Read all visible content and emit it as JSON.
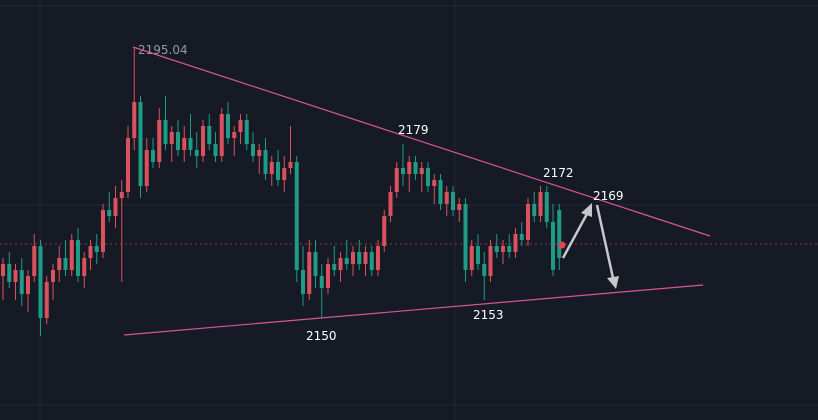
{
  "chart_data": {
    "type": "candlestick",
    "ylim": [
      2133,
      2203
    ],
    "up_color": "#d9525e",
    "down_color": "#1f9b86",
    "annotations": [
      "2195.04",
      "2179",
      "2172",
      "2169",
      "2150",
      "2153"
    ],
    "ohlc": [
      [
        2157,
        2160,
        2153,
        2159
      ],
      [
        2159,
        2161,
        2155,
        2156
      ],
      [
        2156,
        2159,
        2153,
        2158
      ],
      [
        2158,
        2160,
        2152,
        2154
      ],
      [
        2154,
        2158,
        2151,
        2157
      ],
      [
        2157,
        2164,
        2156,
        2162
      ],
      [
        2162,
        2163,
        2147,
        2150
      ],
      [
        2150,
        2157,
        2149,
        2156
      ],
      [
        2156,
        2159,
        2153,
        2158
      ],
      [
        2158,
        2162,
        2156,
        2160
      ],
      [
        2160,
        2163,
        2157,
        2158
      ],
      [
        2158,
        2164,
        2157,
        2163
      ],
      [
        2163,
        2165,
        2156,
        2157
      ],
      [
        2157,
        2161,
        2155,
        2160
      ],
      [
        2160,
        2163,
        2158,
        2162
      ],
      [
        2162,
        2164,
        2159,
        2161
      ],
      [
        2161,
        2169,
        2160,
        2168
      ],
      [
        2168,
        2171,
        2166,
        2167
      ],
      [
        2167,
        2172,
        2165,
        2170
      ],
      [
        2170,
        2173,
        2156,
        2171
      ],
      [
        2171,
        2182,
        2170,
        2180
      ],
      [
        2180,
        2195.04,
        2178,
        2186
      ],
      [
        2186,
        2187,
        2170,
        2172
      ],
      [
        2172,
        2180,
        2171,
        2178
      ],
      [
        2178,
        2180,
        2175,
        2176
      ],
      [
        2176,
        2185,
        2175,
        2183
      ],
      [
        2183,
        2187,
        2178,
        2179
      ],
      [
        2179,
        2182,
        2176,
        2181
      ],
      [
        2181,
        2183,
        2177,
        2178
      ],
      [
        2178,
        2182,
        2176,
        2180
      ],
      [
        2180,
        2184,
        2177,
        2178
      ],
      [
        2178,
        2181,
        2175,
        2177
      ],
      [
        2177,
        2183,
        2176,
        2182
      ],
      [
        2182,
        2184,
        2178,
        2179
      ],
      [
        2179,
        2181,
        2176,
        2177
      ],
      [
        2177,
        2185,
        2176,
        2184
      ],
      [
        2184,
        2186,
        2179,
        2180
      ],
      [
        2180,
        2182,
        2177,
        2181
      ],
      [
        2181,
        2184,
        2179,
        2183
      ],
      [
        2183,
        2184,
        2178,
        2179
      ],
      [
        2179,
        2181,
        2176,
        2177
      ],
      [
        2177,
        2179,
        2174,
        2178
      ],
      [
        2178,
        2180,
        2173,
        2174
      ],
      [
        2174,
        2177,
        2172,
        2176
      ],
      [
        2176,
        2178,
        2172,
        2173
      ],
      [
        2173,
        2177,
        2171,
        2175
      ],
      [
        2175,
        2182,
        2174,
        2176
      ],
      [
        2176,
        2177,
        2156,
        2158
      ],
      [
        2158,
        2162,
        2152,
        2154
      ],
      [
        2154,
        2163,
        2153,
        2161
      ],
      [
        2161,
        2163,
        2155,
        2157
      ],
      [
        2157,
        2159,
        2150,
        2155
      ],
      [
        2155,
        2160,
        2154,
        2159
      ],
      [
        2159,
        2162,
        2157,
        2158
      ],
      [
        2158,
        2161,
        2156,
        2160
      ],
      [
        2160,
        2163,
        2158,
        2159
      ],
      [
        2159,
        2162,
        2157,
        2161
      ],
      [
        2161,
        2163,
        2158,
        2159
      ],
      [
        2159,
        2162,
        2157,
        2161
      ],
      [
        2161,
        2162,
        2157,
        2158
      ],
      [
        2158,
        2163,
        2157,
        2162
      ],
      [
        2162,
        2168,
        2161,
        2167
      ],
      [
        2167,
        2172,
        2166,
        2171
      ],
      [
        2171,
        2176,
        2170,
        2175
      ],
      [
        2175,
        2179,
        2172,
        2174
      ],
      [
        2174,
        2177,
        2171,
        2176
      ],
      [
        2176,
        2177,
        2173,
        2174
      ],
      [
        2174,
        2176,
        2171,
        2175
      ],
      [
        2175,
        2176,
        2171,
        2172
      ],
      [
        2172,
        2174,
        2169,
        2173
      ],
      [
        2173,
        2174,
        2168,
        2169
      ],
      [
        2169,
        2172,
        2167,
        2171
      ],
      [
        2171,
        2172,
        2167,
        2168
      ],
      [
        2168,
        2170,
        2166,
        2169
      ],
      [
        2169,
        2170,
        2156,
        2158
      ],
      [
        2158,
        2163,
        2157,
        2162
      ],
      [
        2162,
        2164,
        2158,
        2159
      ],
      [
        2159,
        2161,
        2153,
        2157
      ],
      [
        2157,
        2163,
        2156,
        2162
      ],
      [
        2162,
        2164,
        2160,
        2161
      ],
      [
        2161,
        2163,
        2159,
        2162
      ],
      [
        2162,
        2164,
        2160,
        2161
      ],
      [
        2161,
        2165,
        2160,
        2164
      ],
      [
        2164,
        2166,
        2162,
        2163
      ],
      [
        2163,
        2170,
        2162,
        2169
      ],
      [
        2169,
        2171,
        2166,
        2167
      ],
      [
        2167,
        2172,
        2166,
        2171
      ],
      [
        2171,
        2172,
        2165,
        2166
      ],
      [
        2166,
        2169,
        2157,
        2158
      ],
      [
        2168,
        2169,
        2158,
        2160
      ]
    ]
  }
}
